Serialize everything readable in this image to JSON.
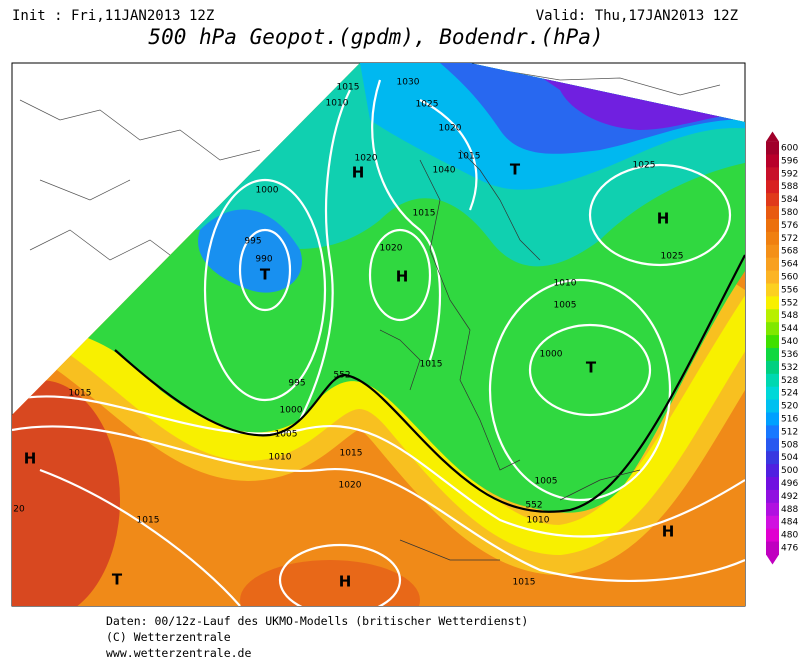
{
  "header": {
    "init": "Init : Fri,11JAN2013 12Z",
    "valid": "Valid: Thu,17JAN2013 12Z",
    "title": "500 hPa Geopot.(gpdm), Bodendr.(hPa)"
  },
  "isobar_labels": [
    "1015",
    "1030",
    "1010",
    "1025",
    "1020",
    "1015",
    "1020",
    "1040",
    "1000",
    "1015",
    "995",
    "990",
    "1020",
    "1025",
    "1025",
    "1010",
    "1005",
    "1000",
    "995",
    "552",
    "1015",
    "1000",
    "1005",
    "1010",
    "1015",
    "1020",
    "1015",
    "1005",
    "552",
    "1010",
    "1015",
    "1015",
    "20"
  ],
  "pressure_centers": [
    "H",
    "T",
    "H",
    "T",
    "H",
    "T",
    "H",
    "H",
    "T",
    "H"
  ],
  "colorbar": {
    "ticks": [
      600,
      596,
      592,
      588,
      584,
      580,
      576,
      572,
      568,
      564,
      560,
      556,
      552,
      548,
      544,
      540,
      536,
      532,
      528,
      524,
      520,
      516,
      512,
      508,
      504,
      500,
      496,
      492,
      488,
      484,
      480,
      476
    ],
    "colors": [
      "#a0002a",
      "#b8002a",
      "#c8102a",
      "#d82020",
      "#e03a1a",
      "#e85a10",
      "#ec700c",
      "#f08010",
      "#f49018",
      "#f8a020",
      "#fcb424",
      "#fcd020",
      "#f8f000",
      "#b8f000",
      "#80e800",
      "#40e000",
      "#10d840",
      "#00d080",
      "#00d8b0",
      "#00d8d8",
      "#00c0f0",
      "#00a0ff",
      "#1878ff",
      "#2858f0",
      "#3838e0",
      "#5020e0",
      "#7010e0",
      "#9010e0",
      "#b010e0",
      "#d010e0",
      "#e000d0",
      "#c000c0"
    ]
  },
  "footer": {
    "line1": "Daten: 00/12z-Lauf des UKMO-Modells (britischer Wetterdienst)",
    "line2": "(C) Wetterzentrale",
    "line3": "www.wetterzentrale.de"
  }
}
